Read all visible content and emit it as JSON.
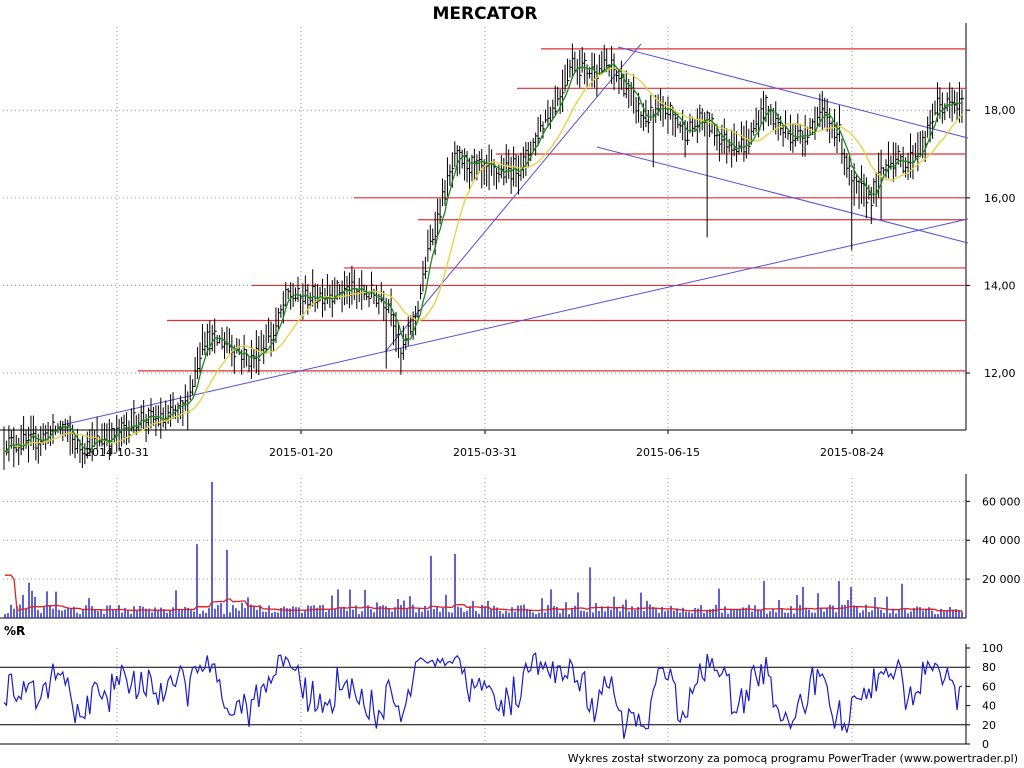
{
  "chart_data": [
    {
      "type": "candlestick",
      "title": "MERCATOR",
      "x_tick_labels": [
        "2014-10-31",
        "2015-01-20",
        "2015-03-31",
        "2015-06-15",
        "2015-08-24"
      ],
      "y_tick_labels": [
        "12,00",
        "14,00",
        "16,00",
        "18,00"
      ],
      "ylim": [
        10.7,
        19.9
      ],
      "grid": true,
      "colors": {
        "price_bars": "#000000",
        "ma_short": "#1a8a1a",
        "ma_long": "#e6d23c",
        "support_resistance": "#e03030",
        "trendlines": "#5050e0"
      },
      "price_series": [
        {
          "x": "2014-09-23",
          "y": 10.4
        },
        {
          "x": "2014-10-07",
          "y": 10.8
        },
        {
          "x": "2014-10-14",
          "y": 10.3
        },
        {
          "x": "2014-10-31",
          "y": 10.6
        },
        {
          "x": "2014-11-10",
          "y": 11.0
        },
        {
          "x": "2014-11-20",
          "y": 10.9
        },
        {
          "x": "2014-12-01",
          "y": 11.3
        },
        {
          "x": "2014-12-08",
          "y": 12.8
        },
        {
          "x": "2014-12-18",
          "y": 12.7
        },
        {
          "x": "2014-12-29",
          "y": 12.3
        },
        {
          "x": "2015-01-08",
          "y": 12.9
        },
        {
          "x": "2015-01-14",
          "y": 13.8
        },
        {
          "x": "2015-01-20",
          "y": 13.7
        },
        {
          "x": "2015-02-05",
          "y": 13.9
        },
        {
          "x": "2015-02-16",
          "y": 13.8
        },
        {
          "x": "2015-02-23",
          "y": 13.6
        },
        {
          "x": "2015-02-27",
          "y": 12.4
        },
        {
          "x": "2015-03-05",
          "y": 13.4
        },
        {
          "x": "2015-03-10",
          "y": 14.9
        },
        {
          "x": "2015-03-16",
          "y": 16.2
        },
        {
          "x": "2015-03-20",
          "y": 16.9
        },
        {
          "x": "2015-03-31",
          "y": 16.6
        },
        {
          "x": "2015-04-09",
          "y": 16.6
        },
        {
          "x": "2015-04-16",
          "y": 16.8
        },
        {
          "x": "2015-04-23",
          "y": 17.6
        },
        {
          "x": "2015-04-30",
          "y": 18.2
        },
        {
          "x": "2015-05-06",
          "y": 19.1
        },
        {
          "x": "2015-05-14",
          "y": 18.9
        },
        {
          "x": "2015-05-22",
          "y": 19.0
        },
        {
          "x": "2015-05-29",
          "y": 18.5
        },
        {
          "x": "2015-06-05",
          "y": 17.8
        },
        {
          "x": "2015-06-15",
          "y": 18.0
        },
        {
          "x": "2015-06-22",
          "y": 17.5
        },
        {
          "x": "2015-06-29",
          "y": 17.8
        },
        {
          "x": "2015-07-06",
          "y": 17.3
        },
        {
          "x": "2015-07-15",
          "y": 17.2
        },
        {
          "x": "2015-07-22",
          "y": 18.1
        },
        {
          "x": "2015-07-29",
          "y": 17.5
        },
        {
          "x": "2015-08-05",
          "y": 17.4
        },
        {
          "x": "2015-08-12",
          "y": 17.9
        },
        {
          "x": "2015-08-19",
          "y": 17.5
        },
        {
          "x": "2015-08-24",
          "y": 16.3
        },
        {
          "x": "2015-08-31",
          "y": 16.0
        },
        {
          "x": "2015-09-07",
          "y": 16.9
        },
        {
          "x": "2015-09-14",
          "y": 16.8
        },
        {
          "x": "2015-09-21",
          "y": 17.3
        },
        {
          "x": "2015-09-25",
          "y": 18.1
        }
      ],
      "support_resistance_levels": [
        19.4,
        18.5,
        17.0,
        16.0,
        15.5,
        14.4,
        14.0,
        13.2,
        12.05
      ]
    },
    {
      "type": "bar",
      "y_tick_labels": [
        "20 000",
        "40 000",
        "60 000"
      ],
      "ylim": [
        0,
        72000
      ],
      "volume_peaks": [
        {
          "x": "2014-09-23",
          "y": 14000
        },
        {
          "x": "2014-12-05",
          "y": 38000
        },
        {
          "x": "2014-12-12",
          "y": 70000
        },
        {
          "x": "2014-12-18",
          "y": 35000
        },
        {
          "x": "2015-03-10",
          "y": 32000
        },
        {
          "x": "2015-03-20",
          "y": 33000
        },
        {
          "x": "2015-05-14",
          "y": 26000
        },
        {
          "x": "2015-07-22",
          "y": 19000
        },
        {
          "x": "2015-08-19",
          "y": 19000
        }
      ]
    },
    {
      "type": "line",
      "ylabel": "%R",
      "y_tick_labels": [
        "0",
        "20",
        "40",
        "60",
        "80",
        "100"
      ],
      "ylim": [
        0,
        100
      ],
      "reference_lines": [
        20,
        80
      ]
    }
  ],
  "footer": {
    "text": "Wykres został stworzony za pomocą programu PowerTrader (www.powertrader.pl)"
  }
}
